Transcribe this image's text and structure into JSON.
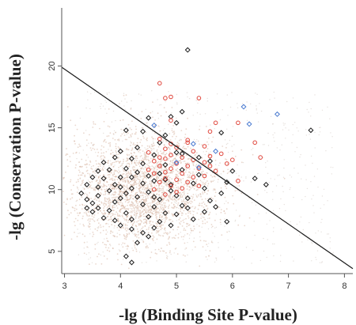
{
  "chart_data": {
    "type": "scatter",
    "title": "",
    "xlabel": "-lg (Binding Site P-value)",
    "ylabel": "-lg (Conservation P-value)",
    "xlim": [
      2.95,
      8.15
    ],
    "ylim": [
      3.2,
      24.7
    ],
    "xticks": [
      3,
      4,
      5,
      6,
      7,
      8
    ],
    "yticks": [
      5,
      10,
      15,
      20
    ],
    "grid": false,
    "legend": "none",
    "colors": {
      "background_cloud": "#d9b8a6",
      "black": "#1a1a1a",
      "red": "#e0463c",
      "blue": "#4a7ad0",
      "line": "#1a1a1a",
      "axis": "#555555"
    },
    "reference_line": {
      "x": [
        2.95,
        8.15
      ],
      "y": [
        19.9,
        3.6
      ]
    },
    "series": [
      {
        "marker": "diamond-open",
        "color": "#1a1a1a",
        "points": [
          [
            5.2,
            21.3
          ],
          [
            5.1,
            16.3
          ],
          [
            4.9,
            15.9
          ],
          [
            4.5,
            15.8
          ],
          [
            5.0,
            15.4
          ],
          [
            4.8,
            14.4
          ],
          [
            4.4,
            14.7
          ],
          [
            4.1,
            14.8
          ],
          [
            5.8,
            14.6
          ],
          [
            7.4,
            14.8
          ],
          [
            6.4,
            10.9
          ],
          [
            6.6,
            10.4
          ],
          [
            5.1,
            12.9
          ],
          [
            4.6,
            12.8
          ],
          [
            4.2,
            12.5
          ],
          [
            3.9,
            12.6
          ],
          [
            3.7,
            12.2
          ],
          [
            3.6,
            11.5
          ],
          [
            3.5,
            11.0
          ],
          [
            3.4,
            10.4
          ],
          [
            3.3,
            9.7
          ],
          [
            3.4,
            9.2
          ],
          [
            3.5,
            8.9
          ],
          [
            3.6,
            8.5
          ],
          [
            3.5,
            8.2
          ],
          [
            3.7,
            7.7
          ],
          [
            3.9,
            7.5
          ],
          [
            4.0,
            7.1
          ],
          [
            4.2,
            6.8
          ],
          [
            4.4,
            6.5
          ],
          [
            4.6,
            6.9
          ],
          [
            4.3,
            5.7
          ],
          [
            4.2,
            4.1
          ],
          [
            4.1,
            4.6
          ],
          [
            4.5,
            6.2
          ],
          [
            4.7,
            7.4
          ],
          [
            3.8,
            9.9
          ],
          [
            3.9,
            10.4
          ],
          [
            4.0,
            11.0
          ],
          [
            4.1,
            11.7
          ],
          [
            4.2,
            10.1
          ],
          [
            4.3,
            9.4
          ],
          [
            4.4,
            8.8
          ],
          [
            4.5,
            9.8
          ],
          [
            4.6,
            10.7
          ],
          [
            4.7,
            11.3
          ],
          [
            4.8,
            12.0
          ],
          [
            4.9,
            10.4
          ],
          [
            5.0,
            9.5
          ],
          [
            5.1,
            8.7
          ],
          [
            5.2,
            9.3
          ],
          [
            5.3,
            10.5
          ],
          [
            5.4,
            11.2
          ],
          [
            5.5,
            10.1
          ],
          [
            5.6,
            9.1
          ],
          [
            5.7,
            8.6
          ],
          [
            5.8,
            9.7
          ],
          [
            5.9,
            10.6
          ],
          [
            6.0,
            11.5
          ],
          [
            5.9,
            7.4
          ],
          [
            5.3,
            7.6
          ],
          [
            4.8,
            8.1
          ],
          [
            3.7,
            10.9
          ],
          [
            3.8,
            8.3
          ],
          [
            4.0,
            9.3
          ],
          [
            4.1,
            8.1
          ],
          [
            4.2,
            7.6
          ],
          [
            4.3,
            11.4
          ],
          [
            4.4,
            12.1
          ],
          [
            4.5,
            11.1
          ],
          [
            4.6,
            8.6
          ],
          [
            4.7,
            9.2
          ],
          [
            4.9,
            9.9
          ],
          [
            5.0,
            13.0
          ],
          [
            4.3,
            13.4
          ],
          [
            4.0,
            13.1
          ],
          [
            3.6,
            10.2
          ],
          [
            3.9,
            9.0
          ],
          [
            4.1,
            9.7
          ],
          [
            4.4,
            10.5
          ],
          [
            4.6,
            9.4
          ],
          [
            4.8,
            10.8
          ],
          [
            5.2,
            8.5
          ],
          [
            5.0,
            8.0
          ],
          [
            5.4,
            12.6
          ],
          [
            5.6,
            12.3
          ],
          [
            4.7,
            13.8
          ],
          [
            4.2,
            11.0
          ],
          [
            3.8,
            11.6
          ],
          [
            4.5,
            7.8
          ],
          [
            4.9,
            7.1
          ],
          [
            5.1,
            11.6
          ],
          [
            3.4,
            8.5
          ],
          [
            3.6,
            9.5
          ],
          [
            4.0,
            10.2
          ],
          [
            5.5,
            8.2
          ]
        ]
      },
      {
        "marker": "circle-open",
        "color": "#e0463c",
        "points": [
          [
            4.7,
            18.6
          ],
          [
            4.8,
            17.4
          ],
          [
            4.9,
            17.5
          ],
          [
            5.4,
            17.4
          ],
          [
            4.9,
            15.6
          ],
          [
            5.6,
            14.7
          ],
          [
            5.7,
            15.4
          ],
          [
            6.1,
            15.4
          ],
          [
            4.7,
            14.1
          ],
          [
            4.9,
            13.7
          ],
          [
            5.0,
            13.4
          ],
          [
            5.2,
            13.8
          ],
          [
            5.3,
            13.1
          ],
          [
            5.5,
            13.5
          ],
          [
            5.6,
            12.7
          ],
          [
            5.8,
            12.9
          ],
          [
            5.9,
            12.1
          ],
          [
            6.0,
            12.4
          ],
          [
            6.4,
            13.8
          ],
          [
            6.5,
            12.6
          ],
          [
            4.5,
            13.0
          ],
          [
            4.6,
            12.3
          ],
          [
            4.7,
            11.9
          ],
          [
            4.8,
            12.5
          ],
          [
            4.9,
            11.7
          ],
          [
            5.0,
            12.1
          ],
          [
            5.1,
            11.3
          ],
          [
            5.2,
            11.9
          ],
          [
            5.3,
            11.0
          ],
          [
            5.4,
            11.7
          ],
          [
            5.5,
            11.1
          ],
          [
            5.6,
            11.9
          ],
          [
            4.6,
            11.3
          ],
          [
            4.7,
            10.6
          ],
          [
            4.8,
            10.9
          ],
          [
            4.9,
            10.3
          ],
          [
            5.0,
            10.8
          ],
          [
            5.1,
            10.1
          ],
          [
            5.2,
            10.6
          ],
          [
            5.4,
            10.3
          ],
          [
            4.6,
            10.0
          ],
          [
            4.8,
            9.6
          ],
          [
            5.0,
            9.8
          ],
          [
            4.9,
            12.8
          ],
          [
            5.1,
            12.6
          ],
          [
            5.3,
            12.4
          ],
          [
            4.8,
            11.4
          ],
          [
            5.7,
            11.5
          ],
          [
            6.1,
            10.7
          ],
          [
            4.7,
            12.6
          ],
          [
            4.5,
            11.6
          ],
          [
            5.5,
            12.2
          ],
          [
            5.2,
            14.0
          ],
          [
            4.8,
            13.3
          ]
        ]
      },
      {
        "marker": "diamond-open",
        "color": "#4a7ad0",
        "points": [
          [
            4.6,
            15.2
          ],
          [
            6.2,
            16.7
          ],
          [
            6.8,
            16.1
          ],
          [
            6.3,
            15.3
          ],
          [
            5.3,
            13.7
          ],
          [
            5.4,
            11.8
          ],
          [
            5.7,
            13.1
          ],
          [
            5.0,
            12.2
          ]
        ]
      }
    ]
  }
}
